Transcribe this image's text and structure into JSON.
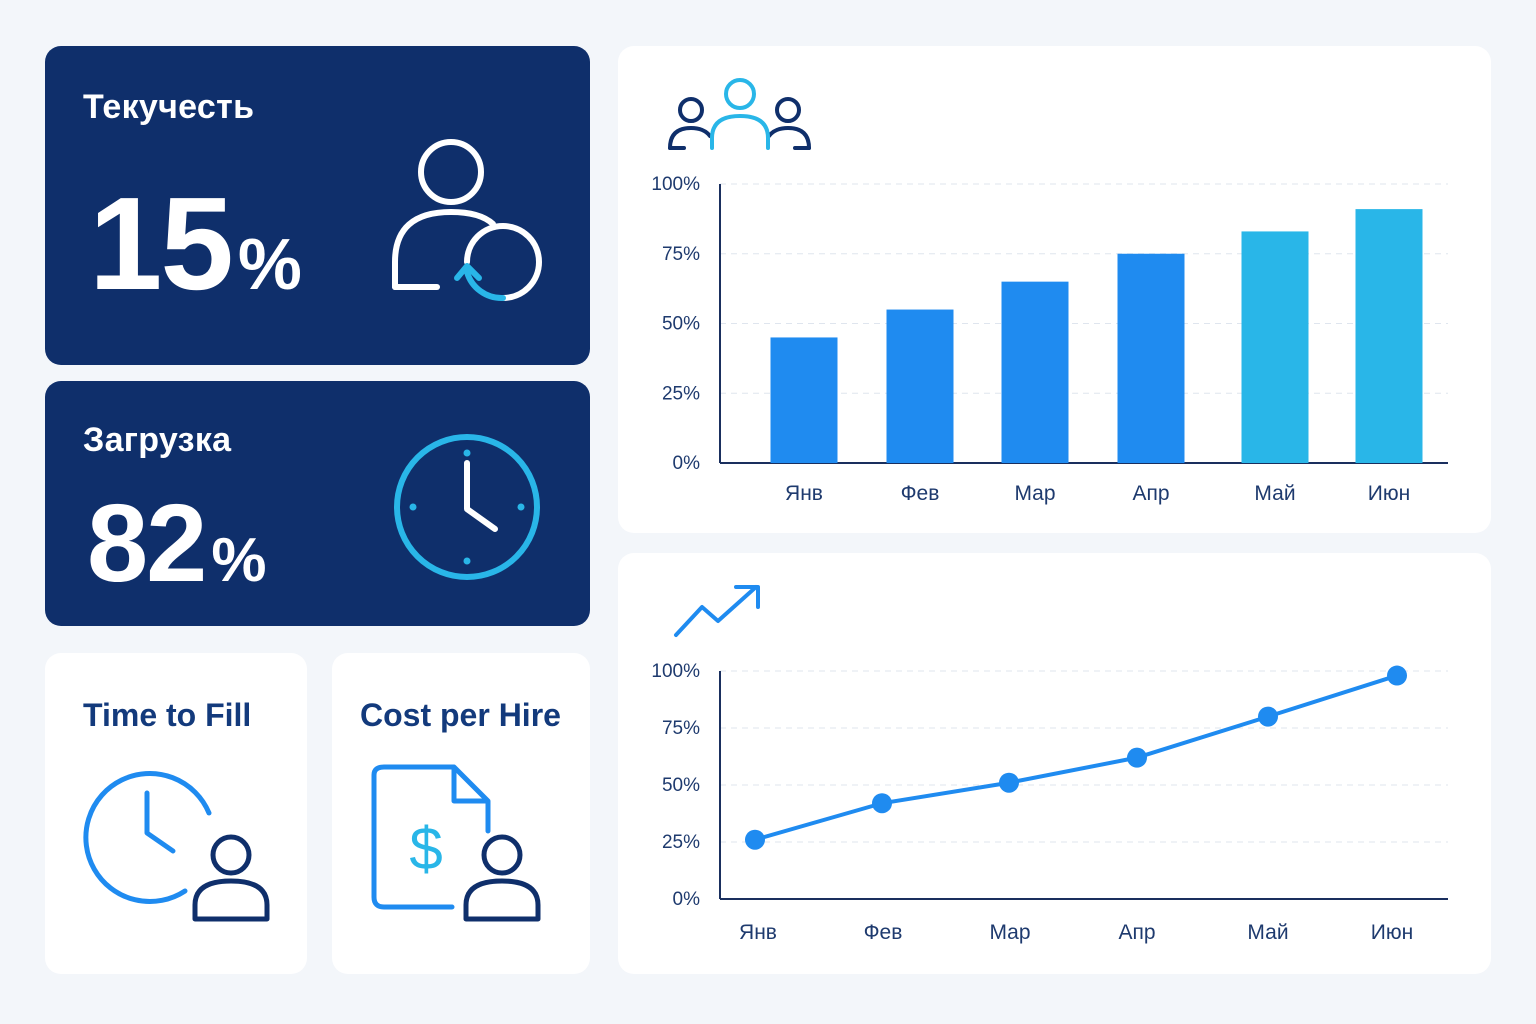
{
  "kpis": {
    "turnover": {
      "title": "Текучесть",
      "value": "15",
      "unit": "%",
      "icon": "user-refresh-icon"
    },
    "workload": {
      "title": "Загрузка",
      "value": "82",
      "unit": "%",
      "icon": "clock-icon"
    }
  },
  "metrics": {
    "time_to_fill": {
      "title": "Time to Fill",
      "icon": "clock-user-icon"
    },
    "cost_per_hire": {
      "title": "Cost per Hire",
      "icon": "document-dollar-user-icon"
    }
  },
  "colors": {
    "dark_card": "#0f2f6b",
    "accent_blue": "#1f8bf0",
    "accent_cyan": "#29b6e8",
    "axis": "#1a2f5e"
  },
  "chart_data": [
    {
      "type": "bar",
      "icon": "team-icon",
      "categories": [
        "Янв",
        "Фев",
        "Мар",
        "Апр",
        "Май",
        "Июн"
      ],
      "values": [
        45,
        55,
        65,
        75,
        83,
        91
      ],
      "ylim": [
        0,
        100
      ],
      "yticks": [
        "0%",
        "25%",
        "50%",
        "75%",
        "100%"
      ],
      "bar_colors": [
        "#1f8bf0",
        "#1f8bf0",
        "#1f8bf0",
        "#1f8bf0",
        "#29b6e8",
        "#29b6e8"
      ],
      "grid": true
    },
    {
      "type": "line",
      "icon": "trend-up-icon",
      "categories": [
        "Янв",
        "Фев",
        "Мар",
        "Апр",
        "Май",
        "Июн"
      ],
      "values": [
        26,
        42,
        51,
        62,
        80,
        98
      ],
      "ylim": [
        0,
        100
      ],
      "yticks": [
        "0%",
        "25%",
        "50%",
        "75%",
        "100%"
      ],
      "line_color": "#1f8bf0",
      "grid": true
    }
  ]
}
